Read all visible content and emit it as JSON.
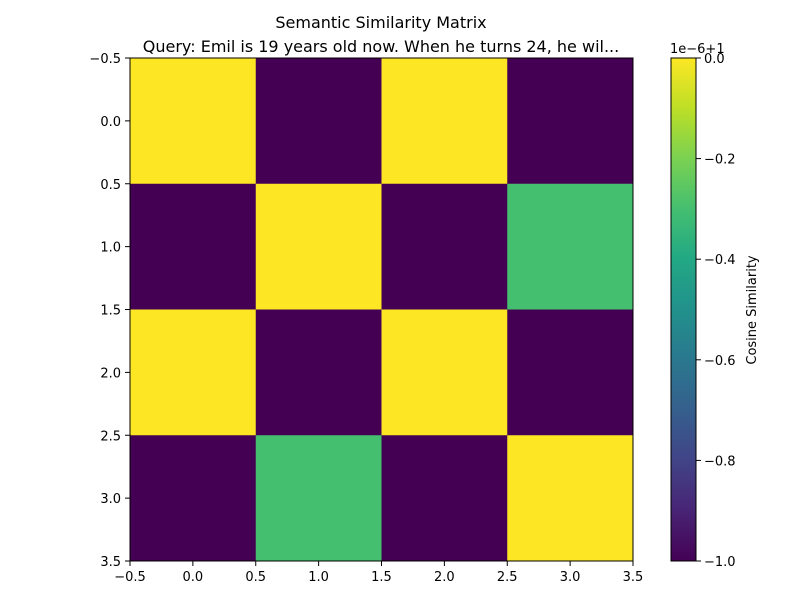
{
  "chart_data": {
    "type": "heatmap",
    "title": "Semantic Similarity Matrix",
    "subtitle": "Query: Emil is 19 years old now. When he turns 24, he wil...",
    "xlabel": "",
    "ylabel": "",
    "x_ticks": [
      "−0.5",
      "0.0",
      "0.5",
      "1.0",
      "1.5",
      "2.0",
      "2.5",
      "3.0",
      "3.5"
    ],
    "y_ticks": [
      "−0.5",
      "0.0",
      "0.5",
      "1.0",
      "1.5",
      "2.0",
      "2.5",
      "3.0",
      "3.5"
    ],
    "xlim": [
      -0.5,
      3.5
    ],
    "ylim": [
      3.5,
      -0.5
    ],
    "matrix": [
      [
        0.0,
        -1.0,
        0.0,
        -1.0
      ],
      [
        -1.0,
        0.0,
        -1.0,
        -0.3
      ],
      [
        0.0,
        -1.0,
        0.0,
        -1.0
      ],
      [
        -1.0,
        -0.3,
        -1.0,
        0.0
      ]
    ],
    "colormap": "viridis",
    "colorbar": {
      "label": "Cosine Similarity",
      "offset_label": "1e−6+1",
      "ticks": [
        "0.0",
        "−0.2",
        "−0.4",
        "−0.6",
        "−0.8",
        "−1.0"
      ],
      "tick_values": [
        0.0,
        -0.2,
        -0.4,
        -0.6,
        -0.8,
        -1.0
      ],
      "range": [
        -1.0,
        0.0
      ]
    },
    "grid": false
  }
}
